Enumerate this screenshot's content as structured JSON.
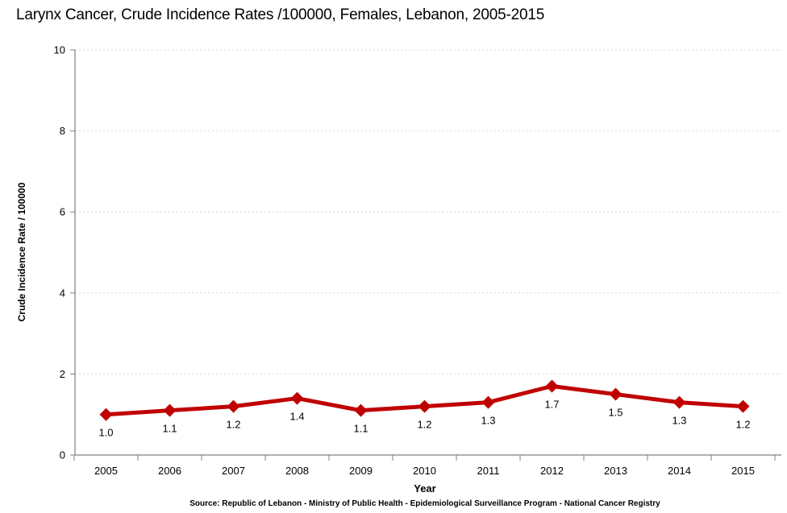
{
  "title": "Larynx Cancer, Crude Incidence Rates /100000, Females, Lebanon, 2005-2015",
  "source_line": "Source: Republic of Lebanon - Ministry of Public Health - Epidemiological Surveillance Program - National Cancer Registry",
  "chart_data": {
    "type": "line",
    "title": "Larynx Cancer, Crude Incidence Rates /100000, Females, Lebanon, 2005-2015",
    "xlabel": "Year",
    "ylabel": "Crude Incidence Rate / 100000",
    "categories": [
      "2005",
      "2006",
      "2007",
      "2008",
      "2009",
      "2010",
      "2011",
      "2012",
      "2013",
      "2014",
      "2015"
    ],
    "values": [
      1.0,
      1.1,
      1.2,
      1.4,
      1.1,
      1.2,
      1.3,
      1.7,
      1.5,
      1.3,
      1.2
    ],
    "data_labels": [
      "1.0",
      "1.1",
      "1.2",
      "1.4",
      "1.1",
      "1.2",
      "1.3",
      "1.7",
      "1.5",
      "1.3",
      "1.2"
    ],
    "ylim": [
      0,
      10
    ],
    "yticks": [
      0,
      2,
      4,
      6,
      8,
      10
    ],
    "grid": "horizontal-dotted",
    "legend": "none",
    "marker": "diamond",
    "line_color": "#C00000",
    "axis_color": "#808080",
    "gridline_color": "#D6D6D6",
    "text_color": "#000000"
  }
}
